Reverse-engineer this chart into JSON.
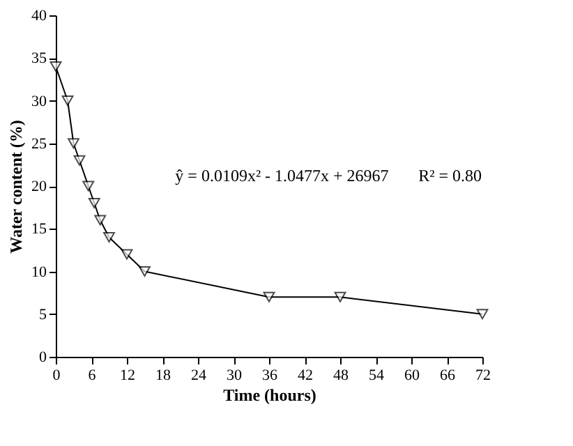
{
  "chart_data": {
    "type": "line",
    "xlabel": "Time (hours)",
    "ylabel": "Water content (%)",
    "x": [
      0,
      2,
      3,
      4,
      5.5,
      6.5,
      7.5,
      9,
      12,
      15,
      36,
      48,
      72
    ],
    "series": [
      {
        "color": "#000000",
        "values": [
          34,
          30,
          25,
          23,
          20,
          18,
          16,
          14,
          12,
          10,
          7,
          7,
          5
        ]
      }
    ],
    "xlim": [
      0,
      72
    ],
    "xticks": [
      0,
      6,
      12,
      18,
      24,
      30,
      36,
      42,
      48,
      54,
      60,
      66,
      72
    ],
    "ylim": [
      0,
      40
    ],
    "yticks": [
      0,
      5,
      10,
      15,
      20,
      25,
      30,
      35,
      40
    ],
    "grid": false,
    "marker": "triangle",
    "line_style": "solid",
    "annotations": [
      "ŷ = 0.0109x² - 1.0477x + 26967",
      "R² = 0.80"
    ]
  }
}
